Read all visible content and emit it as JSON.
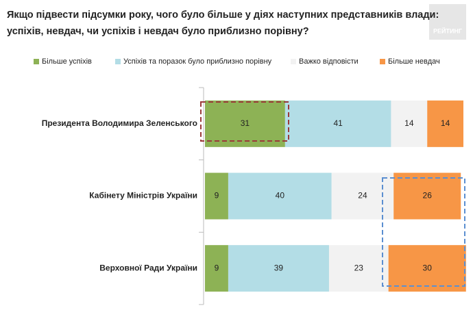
{
  "logo": "РЕЙТИНГ",
  "chart_data": {
    "type": "stacked-bar-horizontal",
    "title": "Якщо підвести підсумки року, чого було більше у діях наступних представників влади:",
    "subtitle": "успіхів, невдач, чи успіхів і невдач було приблизно порівну?",
    "categories": [
      "Президента Володимира Зеленського",
      "Кабінету Міністрів України",
      "Верховної Ради України"
    ],
    "series": [
      {
        "name": "Більше успіхів",
        "color": "#8db255",
        "values": [
          31,
          9,
          9
        ]
      },
      {
        "name": "Успіхів та поразок було приблизно порівну",
        "color": "#b3dde6",
        "values": [
          41,
          40,
          39
        ]
      },
      {
        "name": "Важко відповісти",
        "color": "#f2f2f2",
        "values": [
          14,
          24,
          23
        ]
      },
      {
        "name": "Більше невдач",
        "color": "#f79646",
        "values": [
          14,
          26,
          30
        ]
      }
    ],
    "xlim": [
      0,
      100
    ]
  }
}
